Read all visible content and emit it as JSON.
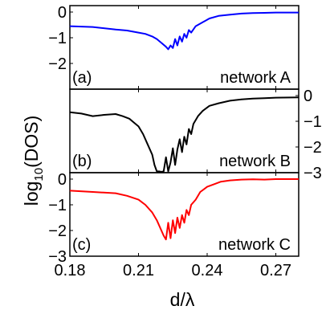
{
  "chart_data": [
    {
      "type": "line",
      "panel_label": "(a)",
      "annotation": "network A",
      "color": "#0000ff",
      "y_axis_side": "left",
      "ylim": [
        -3,
        0.25
      ],
      "yticks": [
        0,
        -1,
        -2
      ],
      "ytick_labels": [
        "0",
        "−1",
        "−2"
      ],
      "series": [
        {
          "x": [
            0.18,
            0.19,
            0.2,
            0.205,
            0.21,
            0.213,
            0.216,
            0.218,
            0.22,
            0.222,
            0.223,
            0.224,
            0.225,
            0.226,
            0.227,
            0.228,
            0.229,
            0.23,
            0.231,
            0.232,
            0.233,
            0.235,
            0.238,
            0.241,
            0.245,
            0.25,
            0.255,
            0.26,
            0.265,
            0.27,
            0.28
          ],
          "y": [
            -0.55,
            -0.58,
            -0.68,
            -0.72,
            -0.8,
            -0.85,
            -0.95,
            -1.05,
            -1.2,
            -1.35,
            -1.45,
            -1.3,
            -1.4,
            -1.05,
            -1.3,
            -0.95,
            -1.15,
            -0.85,
            -1.0,
            -0.7,
            -0.8,
            -0.55,
            -0.4,
            -0.25,
            -0.15,
            -0.1,
            -0.06,
            -0.04,
            -0.03,
            -0.02,
            -0.02
          ]
        }
      ]
    },
    {
      "type": "line",
      "panel_label": "(b)",
      "annotation": "network B",
      "color": "#000000",
      "y_axis_side": "right",
      "ylim": [
        -3,
        0.25
      ],
      "yticks": [
        0,
        -1,
        -2,
        -3
      ],
      "ytick_labels": [
        "0",
        "−1",
        "−2",
        "−3"
      ],
      "series": [
        {
          "x": [
            0.18,
            0.185,
            0.19,
            0.195,
            0.2,
            0.203,
            0.206,
            0.208,
            0.21,
            0.212,
            0.214,
            0.216,
            0.217,
            0.218,
            0.219,
            0.22,
            0.221,
            0.222,
            0.223,
            0.224,
            0.225,
            0.226,
            0.227,
            0.228,
            0.229,
            0.23,
            0.231,
            0.232,
            0.233,
            0.234,
            0.236,
            0.238,
            0.241,
            0.245,
            0.25,
            0.255,
            0.26,
            0.265,
            0.27,
            0.28
          ],
          "y": [
            -0.65,
            -0.7,
            -0.8,
            -0.75,
            -0.72,
            -0.8,
            -0.9,
            -1.05,
            -1.2,
            -1.5,
            -1.9,
            -2.3,
            -2.7,
            -2.95,
            -2.95,
            -2.97,
            -2.95,
            -2.4,
            -2.95,
            -2.6,
            -2.05,
            -2.7,
            -2.1,
            -1.7,
            -2.2,
            -1.6,
            -1.9,
            -1.3,
            -1.5,
            -1.1,
            -0.8,
            -0.6,
            -0.4,
            -0.3,
            -0.2,
            -0.15,
            -0.12,
            -0.1,
            -0.08,
            -0.07
          ]
        }
      ]
    },
    {
      "type": "line",
      "panel_label": "(c)",
      "annotation": "network C",
      "color": "#ff0000",
      "y_axis_side": "left",
      "ylim": [
        -3,
        0.25
      ],
      "yticks": [
        0,
        -1,
        -2,
        -3
      ],
      "ytick_labels": [
        "0",
        "−1",
        "−2",
        "−3"
      ],
      "xlabel": "d/λ",
      "xlim": [
        0.18,
        0.28
      ],
      "xticks": [
        0.18,
        0.21,
        0.24,
        0.27
      ],
      "xtick_labels": [
        "0.18",
        "0.21",
        "0.24",
        "0.27"
      ],
      "series": [
        {
          "x": [
            0.18,
            0.19,
            0.2,
            0.205,
            0.21,
            0.213,
            0.216,
            0.218,
            0.22,
            0.221,
            0.222,
            0.223,
            0.224,
            0.225,
            0.226,
            0.227,
            0.228,
            0.229,
            0.23,
            0.231,
            0.232,
            0.233,
            0.235,
            0.237,
            0.24,
            0.243,
            0.246,
            0.25,
            0.255,
            0.26,
            0.265,
            0.27,
            0.28
          ],
          "y": [
            -0.45,
            -0.5,
            -0.55,
            -0.65,
            -0.8,
            -1.0,
            -1.3,
            -1.6,
            -2.0,
            -2.2,
            -2.35,
            -1.7,
            -2.3,
            -1.6,
            -2.1,
            -1.5,
            -1.9,
            -1.4,
            -1.7,
            -1.2,
            -1.4,
            -1.0,
            -0.8,
            -0.5,
            -0.3,
            -0.2,
            -0.1,
            -0.05,
            -0.02,
            -0.01,
            -0.02,
            0.0,
            0.0
          ]
        }
      ]
    }
  ],
  "shared_ylabel": {
    "main": "log",
    "subscript": "10",
    "rest": "(DOS)"
  }
}
